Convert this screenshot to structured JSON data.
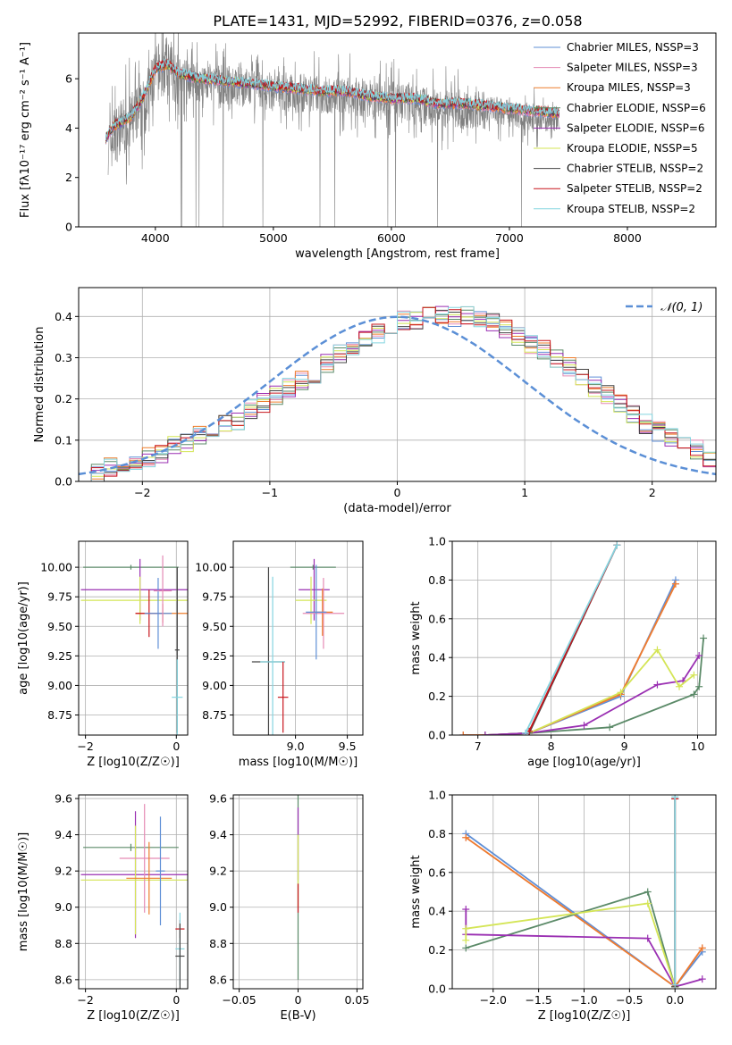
{
  "figure": {
    "title": "PLATE=1431, MJD=52992, FIBERID=0376, z=0.058"
  },
  "colors": {
    "Chabrier MILES": "#5f8fd6",
    "Salpeter MILES": "#e58bb5",
    "Kroupa MILES": "#ee7d2c",
    "Chabrier ELODIE": "#5b8a68",
    "Salpeter ELODIE": "#9a2fb2",
    "Kroupa ELODIE": "#d4e556",
    "Chabrier STELIB": "#444444",
    "Salpeter STELIB": "#c8161d",
    "Kroupa STELIB": "#85d5e0",
    "data": "#808080",
    "normal": "#5b8fd6"
  },
  "chart_data": [
    {
      "id": "spectrum",
      "type": "line",
      "title": "PLATE=1431, MJD=52992, FIBERID=0376, z=0.058",
      "xlabel": "wavelength [Angstrom, rest frame]",
      "ylabel": "Flux [fλ10⁻¹⁷ erg cm⁻² s⁻¹ A⁻¹]",
      "xlim": [
        3350,
        8750
      ],
      "ylim": [
        0,
        7.85
      ],
      "xticks": [
        4000,
        5000,
        6000,
        7000,
        8000
      ],
      "yticks": [
        0,
        2,
        4,
        6
      ],
      "grid": false,
      "legend_position": "top-right",
      "legend": [
        "Chabrier MILES, NSSP=3",
        "Salpeter MILES, NSSP=3",
        "Kroupa MILES, NSSP=3",
        "Chabrier ELODIE, NSSP=6",
        "Salpeter ELODIE, NSSP=6",
        "Kroupa ELODIE, NSSP=5",
        "Chabrier STELIB, NSSP=2",
        "Salpeter STELIB, NSSP=2",
        "Kroupa STELIB, NSSP=2"
      ],
      "series": [
        {
          "name": "data",
          "x": [
            3600,
            3700,
            3800,
            3900,
            4000,
            4100,
            4200,
            4300,
            4500,
            4700,
            4900,
            5100,
            5300,
            5500,
            5700,
            5900,
            6100,
            6300,
            6500,
            6700,
            6900,
            7100,
            7300,
            7420
          ],
          "y": [
            3.3,
            4.0,
            4.3,
            4.8,
            6.2,
            6.5,
            6.1,
            5.9,
            5.8,
            5.7,
            5.5,
            5.4,
            5.4,
            5.3,
            5.3,
            5.1,
            5.1,
            4.9,
            4.8,
            4.7,
            4.7,
            4.5,
            4.4,
            4.4
          ]
        },
        {
          "name": "model",
          "x": [
            3580,
            3650,
            3700,
            3800,
            3900,
            4000,
            4100,
            4200,
            4400,
            4600,
            4800,
            5000,
            5200,
            5400,
            5600,
            5800,
            6000,
            6200,
            6400,
            6600,
            6800,
            7000,
            7200,
            7420
          ],
          "y": [
            3.6,
            4.1,
            4.2,
            4.5,
            5.3,
            6.4,
            6.6,
            6.2,
            6.0,
            5.9,
            5.8,
            5.7,
            5.6,
            5.5,
            5.5,
            5.3,
            5.2,
            5.2,
            5.0,
            5.0,
            4.9,
            4.8,
            4.7,
            4.6
          ]
        }
      ]
    },
    {
      "id": "residuals",
      "type": "line",
      "xlabel": "(data-model)/error",
      "ylabel": "Normed distribution",
      "xlim": [
        -2.5,
        2.5
      ],
      "ylim": [
        0,
        0.47
      ],
      "xticks": [
        -2,
        -1,
        0,
        1,
        2
      ],
      "yticks": [
        0.0,
        0.1,
        0.2,
        0.3,
        0.4
      ],
      "grid": true,
      "legend_position": "top-right",
      "legend": [
        "𝒩(0, 1)"
      ],
      "bin_width": 0.1,
      "x_start": -2.5,
      "hist": [
        0.02,
        0.022,
        0.035,
        0.04,
        0.05,
        0.06,
        0.07,
        0.085,
        0.095,
        0.11,
        0.13,
        0.14,
        0.15,
        0.175,
        0.19,
        0.21,
        0.23,
        0.245,
        0.26,
        0.285,
        0.31,
        0.33,
        0.35,
        0.36,
        0.38,
        0.39,
        0.39,
        0.4,
        0.4,
        0.4,
        0.4,
        0.39,
        0.385,
        0.37,
        0.35,
        0.33,
        0.32,
        0.3,
        0.28,
        0.25,
        0.23,
        0.21,
        0.19,
        0.165,
        0.14,
        0.12,
        0.105,
        0.09,
        0.075,
        0.06,
        0.05,
        0.045,
        0.04,
        0.035,
        0.03
      ]
    },
    {
      "id": "age-Z",
      "type": "scatter",
      "xlabel": "Z [log10(Z/Z☉)]",
      "ylabel": "age  [log10(age/yr)]",
      "xlim": [
        -2.15,
        0.25
      ],
      "ylim": [
        8.58,
        10.22
      ],
      "xticks": [
        -2,
        0
      ],
      "yticks": [
        8.75,
        9.0,
        9.25,
        9.5,
        9.75,
        10.0
      ],
      "grid": true,
      "points": [
        {
          "s": "Chabrier ELODIE",
          "x": -1.0,
          "y": 10.0,
          "xerr": 1.05,
          "yerr": 0.02
        },
        {
          "s": "Salpeter ELODIE",
          "x": -0.8,
          "y": 9.81,
          "xerr": 1.3,
          "yerr": 0.26
        },
        {
          "s": "Kroupa ELODIE",
          "x": -0.8,
          "y": 9.72,
          "xerr": 1.3,
          "yerr": 0.2
        },
        {
          "s": "Kroupa MILES",
          "x": -0.3,
          "y": 9.61,
          "xerr": 0.6,
          "yerr": 0.08
        },
        {
          "s": "Salpeter STELIB",
          "x": -0.6,
          "y": 9.61,
          "xerr": 0.3,
          "yerr": 0.2
        },
        {
          "s": "Chabrier MILES",
          "x": -0.4,
          "y": 9.61,
          "xerr": 0.3,
          "yerr": 0.3
        },
        {
          "s": "Salpeter MILES",
          "x": -0.3,
          "y": 9.8,
          "xerr": 0.2,
          "yerr": 0.3
        },
        {
          "s": "Chabrier STELIB",
          "x": 0.02,
          "y": 9.3,
          "xerr": 0.05,
          "yerr": 0.7
        },
        {
          "s": "Kroupa STELIB",
          "x": 0.02,
          "y": 8.9,
          "xerr": 0.12,
          "yerr": 0.32
        }
      ]
    },
    {
      "id": "age-mass",
      "type": "scatter",
      "xlabel": "mass [log10(M/M☉)]",
      "ylabel": "",
      "xlim": [
        8.4,
        9.65
      ],
      "ylim": [
        8.58,
        10.22
      ],
      "xticks": [
        9.0,
        9.5
      ],
      "yticks": [
        8.75,
        9.0,
        9.25,
        9.5,
        9.75,
        10.0
      ],
      "grid": true,
      "points": [
        {
          "s": "Chabrier ELODIE",
          "x": 9.17,
          "y": 10.0,
          "xerr": 0.22,
          "yerr": 0.02
        },
        {
          "s": "Salpeter ELODIE",
          "x": 9.18,
          "y": 9.81,
          "xerr": 0.15,
          "yerr": 0.26
        },
        {
          "s": "Kroupa ELODIE",
          "x": 9.15,
          "y": 9.72,
          "xerr": 0.15,
          "yerr": 0.2
        },
        {
          "s": "Salpeter MILES",
          "x": 9.27,
          "y": 9.61,
          "xerr": 0.2,
          "yerr": 0.3
        },
        {
          "s": "Kroupa MILES",
          "x": 9.26,
          "y": 9.62,
          "xerr": 0.1,
          "yerr": 0.2
        },
        {
          "s": "Chabrier MILES",
          "x": 9.2,
          "y": 9.62,
          "xerr": 0.1,
          "yerr": 0.4
        },
        {
          "s": "Chabrier STELIB",
          "x": 8.74,
          "y": 9.2,
          "xerr": 0.16,
          "yerr": 0.8
        },
        {
          "s": "Kroupa STELIB",
          "x": 8.78,
          "y": 9.2,
          "xerr": 0.12,
          "yerr": 0.72
        },
        {
          "s": "Salpeter STELIB",
          "x": 8.88,
          "y": 8.9,
          "xerr": 0.05,
          "yerr": 0.3
        }
      ]
    },
    {
      "id": "massweight-age",
      "type": "line",
      "xlabel": "age  [log10(age/yr)]",
      "ylabel": "mass weight",
      "xlim": [
        6.65,
        10.25
      ],
      "ylim": [
        0,
        1.0
      ],
      "xticks": [
        7,
        8,
        9,
        10
      ],
      "yticks": [
        0.0,
        0.2,
        0.4,
        0.6,
        0.8,
        1.0
      ],
      "grid": true,
      "series": [
        {
          "name": "Chabrier MILES",
          "x": [
            6.8,
            7.1,
            7.7,
            8.95,
            9.7
          ],
          "y": [
            0.0,
            0.0,
            0.01,
            0.2,
            0.8
          ]
        },
        {
          "name": "Salpeter MILES",
          "x": [
            6.8,
            7.1,
            7.7,
            8.95,
            9.7
          ],
          "y": [
            0.0,
            0.0,
            0.01,
            0.21,
            0.78
          ]
        },
        {
          "name": "Kroupa MILES",
          "x": [
            6.8,
            7.1,
            7.7,
            8.95,
            9.7
          ],
          "y": [
            0.0,
            0.0,
            0.01,
            0.21,
            0.78
          ]
        },
        {
          "name": "Chabrier ELODIE",
          "x": [
            7.1,
            7.7,
            8.8,
            9.95,
            10.02,
            10.08
          ],
          "y": [
            0.0,
            0.01,
            0.04,
            0.21,
            0.25,
            0.5
          ]
        },
        {
          "name": "Salpeter ELODIE",
          "x": [
            7.1,
            7.7,
            8.45,
            9.45,
            9.8,
            10.02
          ],
          "y": [
            0.0,
            0.01,
            0.05,
            0.26,
            0.28,
            0.41
          ]
        },
        {
          "name": "Kroupa ELODIE",
          "x": [
            7.7,
            8.95,
            9.45,
            9.75,
            9.95
          ],
          "y": [
            0.01,
            0.22,
            0.44,
            0.25,
            0.31
          ]
        },
        {
          "name": "Chabrier STELIB",
          "x": [
            7.7,
            8.9
          ],
          "y": [
            0.01,
            0.98
          ]
        },
        {
          "name": "Salpeter STELIB",
          "x": [
            7.7,
            8.9
          ],
          "y": [
            0.02,
            0.98
          ]
        },
        {
          "name": "Kroupa STELIB",
          "x": [
            7.65,
            8.9
          ],
          "y": [
            0.01,
            0.98
          ]
        }
      ]
    },
    {
      "id": "mass-Z",
      "type": "scatter",
      "xlabel": "Z [log10(Z/Z☉)]",
      "ylabel": "mass [log10(M/M☉)]",
      "xlim": [
        -2.15,
        0.25
      ],
      "ylim": [
        8.55,
        9.62
      ],
      "xticks": [
        -2,
        0
      ],
      "yticks": [
        8.6,
        8.8,
        9.0,
        9.2,
        9.4,
        9.6
      ],
      "grid": true,
      "points": [
        {
          "s": "Chabrier ELODIE",
          "x": -1.0,
          "y": 9.33,
          "xerr": 1.05,
          "yerr": 0.02
        },
        {
          "s": "Salpeter ELODIE",
          "x": -0.9,
          "y": 9.18,
          "xerr": 1.2,
          "yerr": 0.35
        },
        {
          "s": "Kroupa ELODIE",
          "x": -0.9,
          "y": 9.15,
          "xerr": 1.2,
          "yerr": 0.3
        },
        {
          "s": "Salpeter MILES",
          "x": -0.7,
          "y": 9.27,
          "xerr": 0.55,
          "yerr": 0.3
        },
        {
          "s": "Kroupa MILES",
          "x": -0.6,
          "y": 9.16,
          "xerr": 0.5,
          "yerr": 0.2
        },
        {
          "s": "Chabrier MILES",
          "x": -0.35,
          "y": 9.2,
          "xerr": 0.1,
          "yerr": 0.3
        },
        {
          "s": "Salpeter STELIB",
          "x": 0.08,
          "y": 8.88,
          "xerr": 0.1,
          "yerr": 0.05
        },
        {
          "s": "Kroupa STELIB",
          "x": 0.08,
          "y": 8.77,
          "xerr": 0.1,
          "yerr": 0.2
        },
        {
          "s": "Chabrier STELIB",
          "x": 0.08,
          "y": 8.73,
          "xerr": 0.1,
          "yerr": 0.18
        }
      ]
    },
    {
      "id": "mass-ebv",
      "type": "scatter",
      "xlabel": "E(B-V)",
      "ylabel": "",
      "xlim": [
        -0.055,
        0.055
      ],
      "ylim": [
        8.55,
        9.62
      ],
      "xticks": [
        -0.05,
        0.0,
        0.05
      ],
      "yticks": [
        8.6,
        8.8,
        9.0,
        9.2,
        9.4,
        9.6
      ],
      "grid": true,
      "points": [
        {
          "s": "Chabrier ELODIE",
          "x": 0.0,
          "y": 9.2,
          "xerr": 0.0002,
          "yerr": 0.6
        },
        {
          "s": "Salpeter ELODIE",
          "x": 0.0,
          "y": 9.35,
          "xerr": 0.0002,
          "yerr": 0.2
        },
        {
          "s": "Kroupa ELODIE",
          "x": 0.0,
          "y": 9.2,
          "xerr": 0.0002,
          "yerr": 0.2
        },
        {
          "s": "Salpeter STELIB",
          "x": 0.0,
          "y": 9.05,
          "xerr": 0.0002,
          "yerr": 0.08
        }
      ]
    },
    {
      "id": "massweight-Z",
      "type": "line",
      "xlabel": "Z [log10(Z/Z☉)]",
      "ylabel": "mass weight",
      "xlim": [
        -2.45,
        0.45
      ],
      "ylim": [
        0,
        1.0
      ],
      "xticks": [
        -2.0,
        -1.5,
        -1.0,
        -0.5,
        0.0
      ],
      "yticks": [
        0.0,
        0.2,
        0.4,
        0.6,
        0.8,
        1.0
      ],
      "grid": true,
      "series": [
        {
          "name": "Chabrier MILES",
          "x": [
            -2.3,
            0.0,
            0.3
          ],
          "y": [
            0.8,
            0.01,
            0.19
          ]
        },
        {
          "name": "Salpeter MILES",
          "x": [
            -2.3,
            0.0,
            0.3
          ],
          "y": [
            0.78,
            0.01,
            0.21
          ]
        },
        {
          "name": "Kroupa MILES",
          "x": [
            -2.3,
            0.0,
            0.3
          ],
          "y": [
            0.78,
            0.01,
            0.21
          ]
        },
        {
          "name": "Chabrier ELODIE",
          "x": [
            -2.3,
            -0.3,
            0.0
          ],
          "y": [
            0.21,
            0.5,
            0.01
          ]
        },
        {
          "name": "Salpeter ELODIE",
          "x": [
            -2.3,
            -2.3,
            -0.3,
            0.0,
            0.3
          ],
          "y": [
            0.41,
            0.28,
            0.26,
            0.01,
            0.05
          ]
        },
        {
          "name": "Kroupa ELODIE",
          "x": [
            -2.3,
            -2.3,
            -0.3,
            0.0
          ],
          "y": [
            0.25,
            0.31,
            0.44,
            0.01
          ]
        },
        {
          "name": "Chabrier STELIB",
          "x": [
            0.0,
            0.0
          ],
          "y": [
            0.01,
            0.98
          ]
        },
        {
          "name": "Salpeter STELIB",
          "x": [
            0.0,
            0.0
          ],
          "y": [
            0.02,
            0.98
          ]
        },
        {
          "name": "Kroupa STELIB",
          "x": [
            0.0,
            0.0
          ],
          "y": [
            0.02,
            0.99
          ]
        }
      ]
    }
  ]
}
